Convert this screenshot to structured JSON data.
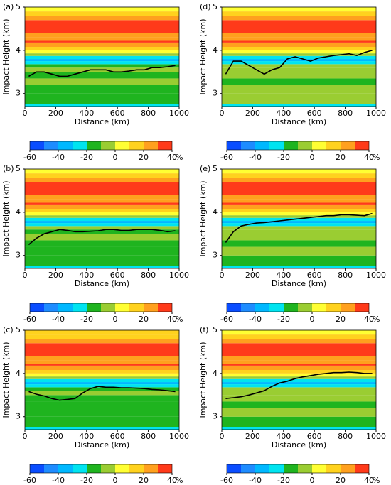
{
  "colorbar": {
    "levels": [
      -60,
      -50,
      -40,
      -30,
      -20,
      -10,
      0,
      10,
      20,
      30,
      40
    ],
    "colors": [
      "#0a4dff",
      "#1e8cff",
      "#00b8ff",
      "#00e4f0",
      "#1fb41f",
      "#9acd32",
      "#ffff33",
      "#ffd21e",
      "#ffa01e",
      "#ff3a1a"
    ],
    "ticks": [
      -60,
      -40,
      -20,
      0,
      20,
      40
    ],
    "unit": "%"
  },
  "chart_data": [
    {
      "type": "contour",
      "label": "(a)",
      "xlabel": "Distance (km)",
      "ylabel": "Impact Height (km)",
      "xlim": [
        0,
        1000
      ],
      "ylim": [
        2.7,
        5
      ],
      "xticks": [
        0,
        200,
        400,
        600,
        800,
        1000
      ],
      "yticks": [
        3,
        4,
        5
      ],
      "height_edges": [
        2.7,
        2.75,
        3.0,
        3.2,
        3.35,
        3.5,
        3.6,
        3.68,
        3.75,
        3.8,
        3.87,
        3.93,
        4.0,
        4.08,
        4.18,
        4.22,
        4.3,
        4.4,
        4.7,
        4.8,
        4.9,
        5.0
      ],
      "values": [
        -25,
        -15,
        -15,
        -5,
        -15,
        -5,
        -15,
        -25,
        -35,
        -25,
        -5,
        5,
        15,
        25,
        35,
        25,
        25,
        35,
        25,
        15,
        5
      ],
      "line": {
        "color": "#000000",
        "x": [
          25,
          75,
          125,
          175,
          225,
          275,
          325,
          375,
          425,
          475,
          525,
          575,
          625,
          675,
          725,
          775,
          825,
          875,
          925,
          975
        ],
        "values": [
          3.4,
          3.5,
          3.5,
          3.45,
          3.4,
          3.4,
          3.45,
          3.5,
          3.55,
          3.55,
          3.55,
          3.5,
          3.5,
          3.52,
          3.55,
          3.55,
          3.6,
          3.6,
          3.62,
          3.65
        ]
      }
    },
    {
      "type": "contour",
      "label": "(b)",
      "xlabel": "Distance (km)",
      "ylabel": "Impact Height (km)",
      "xlim": [
        0,
        1000
      ],
      "ylim": [
        2.7,
        5
      ],
      "xticks": [
        0,
        200,
        400,
        600,
        800,
        1000
      ],
      "yticks": [
        3,
        4,
        5
      ],
      "height_edges": [
        2.7,
        2.75,
        3.0,
        3.2,
        3.35,
        3.5,
        3.6,
        3.68,
        3.75,
        3.8,
        3.87,
        3.93,
        4.0,
        4.08,
        4.18,
        4.22,
        4.3,
        4.4,
        4.7,
        4.8,
        4.9,
        5.0
      ],
      "values": [
        -25,
        -15,
        -15,
        -15,
        -5,
        -15,
        -5,
        -25,
        -35,
        -25,
        -5,
        5,
        15,
        25,
        35,
        25,
        25,
        35,
        25,
        15,
        5
      ],
      "line": {
        "color": "#000000",
        "x": [
          25,
          75,
          125,
          175,
          225,
          275,
          325,
          375,
          425,
          475,
          525,
          575,
          625,
          675,
          725,
          775,
          825,
          875,
          925,
          975
        ],
        "values": [
          3.25,
          3.4,
          3.5,
          3.55,
          3.6,
          3.58,
          3.55,
          3.55,
          3.56,
          3.57,
          3.6,
          3.6,
          3.58,
          3.58,
          3.6,
          3.6,
          3.6,
          3.58,
          3.55,
          3.57
        ]
      }
    },
    {
      "type": "contour",
      "label": "(c)",
      "xlabel": "Distance (km)",
      "ylabel": "Impact Height (km)",
      "xlim": [
        0,
        1000
      ],
      "ylim": [
        2.7,
        5
      ],
      "xticks": [
        0,
        200,
        400,
        600,
        800,
        1000
      ],
      "yticks": [
        3,
        4,
        5
      ],
      "height_edges": [
        2.7,
        2.75,
        3.0,
        3.2,
        3.35,
        3.5,
        3.6,
        3.68,
        3.75,
        3.8,
        3.87,
        3.93,
        4.0,
        4.08,
        4.18,
        4.22,
        4.3,
        4.4,
        4.7,
        4.8,
        4.9,
        5.0
      ],
      "values": [
        -25,
        -15,
        -15,
        -15,
        -15,
        -5,
        -15,
        -25,
        -35,
        -25,
        -5,
        5,
        15,
        25,
        35,
        25,
        25,
        35,
        25,
        15,
        15
      ],
      "line": {
        "color": "#000000",
        "x": [
          25,
          75,
          125,
          175,
          225,
          275,
          325,
          375,
          425,
          475,
          525,
          575,
          625,
          675,
          725,
          775,
          825,
          875,
          925,
          975
        ],
        "values": [
          3.58,
          3.52,
          3.48,
          3.42,
          3.38,
          3.4,
          3.42,
          3.55,
          3.65,
          3.7,
          3.68,
          3.68,
          3.67,
          3.67,
          3.66,
          3.65,
          3.63,
          3.62,
          3.6,
          3.58
        ]
      }
    },
    {
      "type": "contour",
      "label": "(d)",
      "xlabel": "Distance (km)",
      "ylabel": "Impact Height (km)",
      "xlim": [
        0,
        1000
      ],
      "ylim": [
        2.7,
        5
      ],
      "xticks": [
        0,
        200,
        400,
        600,
        800,
        1000
      ],
      "yticks": [
        3,
        4,
        5
      ],
      "height_edges": [
        2.7,
        2.75,
        3.0,
        3.2,
        3.35,
        3.5,
        3.6,
        3.68,
        3.75,
        3.8,
        3.87,
        3.93,
        4.0,
        4.08,
        4.18,
        4.22,
        4.3,
        4.4,
        4.7,
        4.8,
        4.9,
        5.0
      ],
      "values": [
        -25,
        -5,
        -5,
        -15,
        -5,
        -5,
        -5,
        -25,
        -35,
        -25,
        -5,
        5,
        15,
        25,
        35,
        25,
        25,
        35,
        25,
        15,
        5
      ],
      "line": {
        "color": "#000000",
        "x": [
          25,
          75,
          125,
          175,
          225,
          275,
          325,
          375,
          425,
          475,
          525,
          575,
          625,
          675,
          725,
          775,
          825,
          875,
          925,
          975
        ],
        "values": [
          3.45,
          3.75,
          3.75,
          3.65,
          3.55,
          3.45,
          3.55,
          3.6,
          3.8,
          3.85,
          3.8,
          3.75,
          3.82,
          3.85,
          3.88,
          3.9,
          3.92,
          3.88,
          3.95,
          4.0
        ]
      }
    },
    {
      "type": "contour",
      "label": "(e)",
      "xlabel": "Distance (km)",
      "ylabel": "Impact Height (km)",
      "xlim": [
        0,
        1000
      ],
      "ylim": [
        2.7,
        5
      ],
      "xticks": [
        0,
        200,
        400,
        600,
        800,
        1000
      ],
      "yticks": [
        3,
        4,
        5
      ],
      "height_edges": [
        2.7,
        2.75,
        3.0,
        3.2,
        3.35,
        3.5,
        3.6,
        3.68,
        3.75,
        3.8,
        3.87,
        3.93,
        4.0,
        4.08,
        4.18,
        4.22,
        4.3,
        4.4,
        4.7,
        4.8,
        4.9,
        5.0
      ],
      "values": [
        -25,
        -15,
        -5,
        -15,
        -5,
        -5,
        -5,
        -25,
        -35,
        -25,
        -5,
        5,
        15,
        25,
        35,
        25,
        25,
        35,
        25,
        15,
        5
      ],
      "line": {
        "color": "#000000",
        "x": [
          25,
          75,
          125,
          175,
          225,
          275,
          325,
          375,
          425,
          475,
          525,
          575,
          625,
          675,
          725,
          775,
          825,
          875,
          925,
          975
        ],
        "values": [
          3.3,
          3.55,
          3.68,
          3.72,
          3.75,
          3.76,
          3.78,
          3.8,
          3.82,
          3.84,
          3.86,
          3.88,
          3.9,
          3.92,
          3.92,
          3.94,
          3.94,
          3.93,
          3.92,
          3.97
        ]
      }
    },
    {
      "type": "contour",
      "label": "(f)",
      "xlabel": "Distance (km)",
      "ylabel": "Impact Height (km)",
      "xlim": [
        0,
        1000
      ],
      "ylim": [
        2.7,
        5
      ],
      "xticks": [
        0,
        200,
        400,
        600,
        800,
        1000
      ],
      "yticks": [
        3,
        4,
        5
      ],
      "height_edges": [
        2.7,
        2.75,
        3.0,
        3.2,
        3.35,
        3.5,
        3.6,
        3.68,
        3.75,
        3.8,
        3.87,
        3.93,
        4.0,
        4.08,
        4.18,
        4.22,
        4.3,
        4.4,
        4.7,
        4.8,
        4.9,
        5.0
      ],
      "values": [
        -25,
        -15,
        -5,
        -15,
        -5,
        -5,
        -5,
        -25,
        -35,
        -25,
        -5,
        5,
        15,
        25,
        35,
        25,
        25,
        35,
        25,
        15,
        5
      ],
      "line": {
        "color": "#000000",
        "x": [
          25,
          75,
          125,
          175,
          225,
          275,
          325,
          375,
          425,
          475,
          525,
          575,
          625,
          675,
          725,
          775,
          825,
          875,
          925,
          975
        ],
        "values": [
          3.42,
          3.44,
          3.46,
          3.5,
          3.55,
          3.6,
          3.7,
          3.78,
          3.82,
          3.88,
          3.92,
          3.95,
          3.98,
          4.0,
          4.02,
          4.02,
          4.03,
          4.02,
          4.0,
          4.0
        ]
      }
    }
  ]
}
